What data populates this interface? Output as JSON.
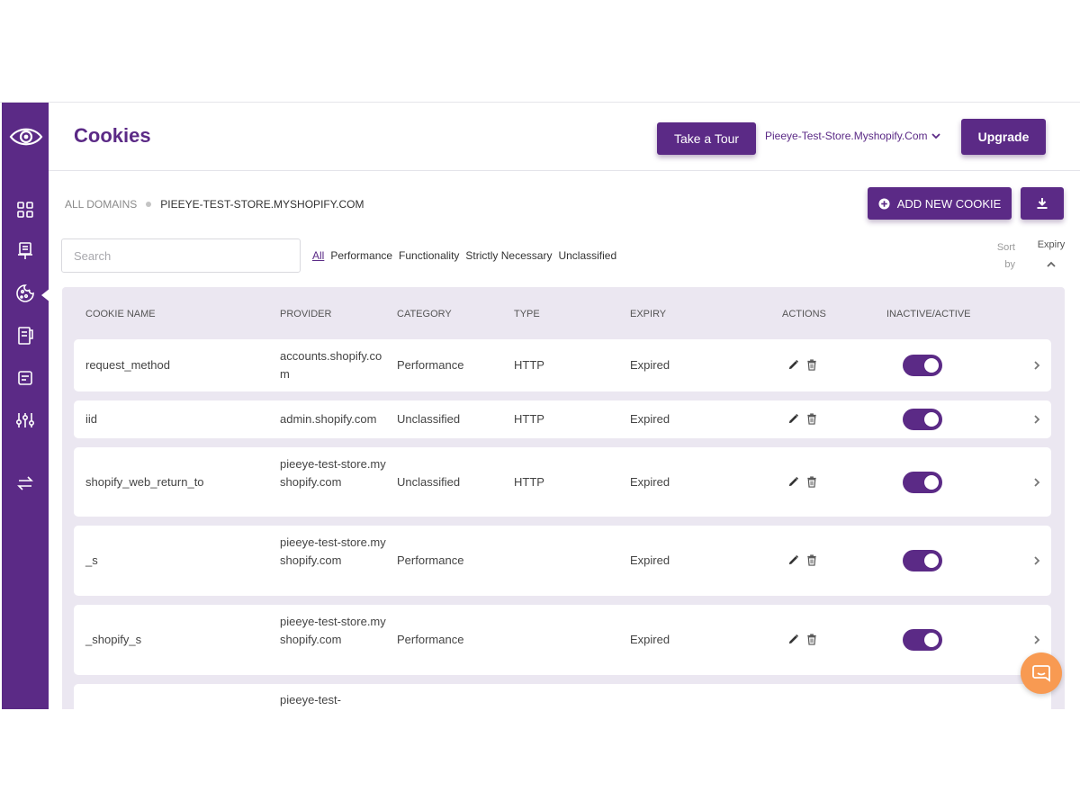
{
  "sidebar": {
    "logo_icon": "eye-logo-icon",
    "items": [
      {
        "icon": "dashboard-grid-icon"
      },
      {
        "icon": "presentation-icon"
      },
      {
        "icon": "cookie-icon",
        "active": true
      },
      {
        "icon": "document-list-icon"
      },
      {
        "icon": "note-icon"
      },
      {
        "icon": "sliders-icon"
      },
      {
        "icon": "swap-arrows-icon"
      }
    ]
  },
  "header": {
    "title": "Cookies",
    "tour_label": "Take a Tour",
    "store": "Pieeye-Test-Store.Myshopify.Com",
    "upgrade_label": "Upgrade"
  },
  "breadcrumb": {
    "all": "ALL DOMAINS",
    "current": "PIEEYE-TEST-STORE.MYSHOPIFY.COM"
  },
  "toolbar": {
    "add_label": "ADD NEW COOKIE",
    "search_placeholder": "Search",
    "filters": [
      "All",
      "Performance",
      "Functionality",
      "Strictly Necessary",
      "Unclassified"
    ],
    "sort_label": "Sort by",
    "sort_field": "Expiry"
  },
  "table": {
    "columns": [
      "COOKIE NAME",
      "PROVIDER",
      "CATEGORY",
      "TYPE",
      "EXPIRY",
      "ACTIONS",
      "INACTIVE/ACTIVE"
    ],
    "rows": [
      {
        "name": "request_method",
        "provider": "accounts.shopify.com",
        "category": "Performance",
        "type": "HTTP",
        "expiry": "Expired",
        "active": true
      },
      {
        "name": "iid",
        "provider": "admin.shopify.com",
        "category": "Unclassified",
        "type": "HTTP",
        "expiry": "Expired",
        "active": true
      },
      {
        "name": "shopify_web_return_to",
        "provider": "pieeye-test-store.myshopify.com",
        "category": "Unclassified",
        "type": "HTTP",
        "expiry": "Expired",
        "active": true
      },
      {
        "name": "_s",
        "provider": "pieeye-test-store.myshopify.com",
        "category": "Performance",
        "type": "",
        "expiry": "Expired",
        "active": true
      },
      {
        "name": "_shopify_s",
        "provider": "pieeye-test-store.myshopify.com",
        "category": "Performance",
        "type": "",
        "expiry": "Expired",
        "active": true
      },
      {
        "name": "",
        "provider": "pieeye-test-",
        "category": "",
        "type": "",
        "expiry": "",
        "active": true
      }
    ]
  },
  "chat": {
    "icon": "chat-bubble-icon"
  },
  "colors": {
    "primary": "#5b2a86",
    "table_bg": "#ebe7f1",
    "chat": "#f89a52"
  }
}
